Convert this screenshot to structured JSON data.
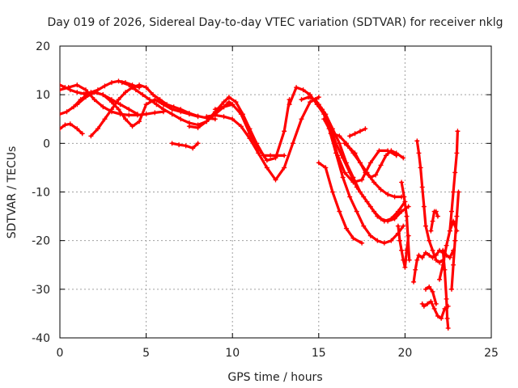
{
  "chart_data": {
    "type": "scatter",
    "title": "Day 019 of 2026, Sidereal Day-to-day VTEC variation (SDTVAR) for receiver nklg",
    "xlabel": "GPS time / hours",
    "ylabel": "SDTVAR / TECUs",
    "xlim": [
      0,
      25
    ],
    "ylim": [
      -40,
      20
    ],
    "x_ticks": [
      0,
      5,
      10,
      15,
      20,
      25
    ],
    "y_ticks": [
      20,
      10,
      0,
      -10,
      -20,
      -30,
      -40
    ],
    "grid": true,
    "legend": "none",
    "marker": "+",
    "color": "#ff0000",
    "series": [
      {
        "name": "trace-1",
        "x": [
          0,
          0.3,
          0.6,
          1.0,
          1.4,
          1.8,
          2.2,
          2.6,
          3.0,
          3.4,
          3.8,
          4.2,
          4.6
        ],
        "y": [
          12,
          11.5,
          11,
          10.5,
          10.2,
          10.5,
          11,
          11.8,
          12.5,
          12.8,
          12.5,
          12,
          11.5
        ]
      },
      {
        "name": "trace-2",
        "x": [
          0,
          0.4,
          0.8,
          1.2,
          1.6,
          2.0,
          2.5,
          3.0,
          3.5,
          4.0,
          4.5
        ],
        "y": [
          6,
          6.5,
          7.5,
          9,
          10,
          10.5,
          10,
          9,
          8,
          7,
          6
        ]
      },
      {
        "name": "trace-3",
        "x": [
          0,
          0.3,
          0.6,
          1.0,
          1.3
        ],
        "y": [
          3,
          3.8,
          4,
          3,
          2
        ]
      },
      {
        "name": "trace-4",
        "x": [
          0,
          0.5,
          1.0,
          1.5,
          2.0,
          2.5,
          3.0,
          3.5,
          4.0,
          4.5,
          5.0,
          5.5,
          6.0
        ],
        "y": [
          11,
          11.5,
          12,
          11,
          9,
          7.5,
          6.5,
          6,
          5.8,
          5.8,
          6,
          6.3,
          6.5
        ]
      },
      {
        "name": "trace-5",
        "x": [
          1.8,
          2.2,
          2.6,
          3.0,
          3.4,
          3.8,
          4.2,
          4.6,
          5.0,
          5.4,
          5.8,
          6.2,
          6.6,
          7.0,
          7.5,
          8.0,
          8.5,
          9.0
        ],
        "y": [
          1.5,
          3,
          5,
          7,
          9,
          10.5,
          11.5,
          12,
          11.5,
          10,
          9,
          8,
          7.5,
          7,
          6.2,
          5.6,
          5.2,
          5
        ]
      },
      {
        "name": "trace-6",
        "x": [
          1.0,
          1.5,
          2.0,
          2.5,
          3.0,
          3.4,
          3.8,
          4.2,
          4.6,
          5.0,
          5.5,
          6.0,
          6.5,
          7.0,
          7.5,
          8.0
        ],
        "y": [
          8,
          9.5,
          10.5,
          10,
          8.5,
          7,
          5,
          3.5,
          4.5,
          8,
          9,
          8,
          7,
          6.5,
          6,
          5.5
        ]
      },
      {
        "name": "trace-7",
        "x": [
          3.6,
          4.0,
          4.4,
          4.8,
          5.2,
          5.6,
          6.0,
          6.5,
          7.0,
          7.5,
          8.0,
          8.5,
          9.0,
          9.5,
          9.8,
          10.0
        ],
        "y": [
          12.5,
          12,
          11,
          10,
          9,
          8,
          7,
          6,
          5,
          4.2,
          3.8,
          4.5,
          6,
          7.5,
          8.5,
          8
        ]
      },
      {
        "name": "trace-8",
        "x": [
          6.5,
          6.9,
          7.3,
          7.7,
          8.0
        ],
        "y": [
          0,
          -0.3,
          -0.5,
          -1,
          0
        ]
      },
      {
        "name": "trace-9",
        "x": [
          7.5,
          8.0,
          8.5,
          9.0,
          9.5,
          9.8,
          10.2,
          10.6,
          11.0,
          11.4,
          11.8,
          12.2,
          12.6,
          13.0
        ],
        "y": [
          3.5,
          3.2,
          4.5,
          6.5,
          8.5,
          9.5,
          8.5,
          6,
          3,
          0,
          -2.5,
          -2.5,
          -2.5,
          -2.5
        ]
      },
      {
        "name": "trace-10",
        "x": [
          8.5,
          9.0,
          9.5,
          10.0,
          10.5,
          11.0,
          11.5,
          12.0,
          12.5,
          13.0,
          13.5,
          14.0,
          14.5,
          15.0
        ],
        "y": [
          5.5,
          5.8,
          5.5,
          5,
          3.5,
          1,
          -2,
          -5,
          -7.5,
          -5,
          0,
          5,
          8.5,
          9.5
        ]
      },
      {
        "name": "trace-11",
        "x": [
          9.0,
          9.5,
          10.0,
          10.5,
          11.0,
          11.5,
          12.0,
          12.5,
          13.0,
          13.3
        ],
        "y": [
          7,
          7.5,
          8,
          6,
          2,
          -1,
          -3.5,
          -3,
          2.5,
          9
        ]
      },
      {
        "name": "trace-12",
        "x": [
          13.3,
          13.7,
          14.1,
          14.5,
          14.9,
          15.3,
          15.7,
          16.1,
          16.5,
          17.0,
          17.5,
          18.0,
          18.5,
          19.0,
          19.5
        ],
        "y": [
          8,
          11.5,
          11,
          10,
          8,
          6,
          2,
          -2.5,
          -6,
          -8,
          -7.5,
          -4,
          -1.5,
          -1.5,
          -2.5
        ]
      },
      {
        "name": "trace-13",
        "x": [
          14.0,
          14.4,
          14.8,
          15.2,
          15.6,
          16.0,
          16.4,
          16.8,
          17.2,
          17.6,
          18.0,
          18.4,
          18.8,
          19.2,
          19.6,
          20.0
        ],
        "y": [
          9,
          9.5,
          9,
          7,
          4,
          0,
          -3,
          -6,
          -9,
          -11,
          -13,
          -15,
          -16,
          -15.5,
          -14,
          -12
        ]
      },
      {
        "name": "trace-14",
        "x": [
          15.0,
          15.4,
          15.8,
          16.2,
          16.6,
          17.0,
          17.5
        ],
        "y": [
          -4,
          -5,
          -10,
          -14,
          -17.5,
          -19.5,
          -20.5
        ]
      },
      {
        "name": "trace-15",
        "x": [
          15.0,
          15.4,
          15.8,
          16.2,
          16.6,
          17.0,
          17.4,
          17.8,
          18.2,
          18.6,
          19.0,
          19.4,
          19.8,
          20.2
        ],
        "y": [
          8,
          6,
          3,
          0,
          -4,
          -7,
          -10,
          -12,
          -14,
          -15.5,
          -16,
          -15.5,
          -14,
          -13
        ]
      },
      {
        "name": "trace-16",
        "x": [
          15.3,
          15.6,
          16.0,
          16.4,
          16.8,
          17.2,
          17.6,
          18.0,
          18.4,
          18.8,
          19.2,
          19.6,
          19.9
        ],
        "y": [
          5,
          3,
          -2,
          -7,
          -11,
          -14,
          -17,
          -19,
          -20,
          -20.5,
          -20,
          -18.5,
          -17
        ]
      },
      {
        "name": "trace-17",
        "x": [
          15.8,
          16.2,
          16.6,
          17.0,
          17.4,
          17.8,
          18.2,
          18.6,
          19.0,
          19.4,
          19.8
        ],
        "y": [
          2,
          1.5,
          0,
          -2,
          -4,
          -6,
          -8,
          -9.5,
          -10.5,
          -11,
          -11
        ]
      },
      {
        "name": "trace-18",
        "x": [
          16.5,
          16.8,
          17.1,
          17.4,
          17.7,
          18.0,
          18.3,
          18.6,
          18.9,
          19.2,
          19.5,
          19.9
        ],
        "y": [
          0,
          -1,
          -2,
          -4,
          -6,
          -7,
          -6.5,
          -4.5,
          -2.5,
          -1.5,
          -2,
          -3
        ]
      },
      {
        "name": "trace-19",
        "x": [
          16.8,
          17.1,
          17.4,
          17.7
        ],
        "y": [
          1.5,
          2,
          2.5,
          3
        ]
      },
      {
        "name": "trace-20",
        "x": [
          19.8,
          19.95,
          20.1,
          20.25
        ],
        "y": [
          -8,
          -11,
          -15,
          -24
        ]
      },
      {
        "name": "trace-21",
        "x": [
          19.6,
          19.7,
          19.8,
          19.9,
          20.0,
          20.1,
          20.2
        ],
        "y": [
          -17,
          -20,
          -22,
          -24,
          -25.5,
          -22,
          -19
        ]
      },
      {
        "name": "trace-22",
        "x": [
          20.7,
          20.8,
          20.9,
          21.0,
          21.1,
          21.2,
          21.4,
          21.6,
          21.8,
          22.0,
          22.2
        ],
        "y": [
          0.5,
          -2,
          -5,
          -9,
          -13,
          -17,
          -20,
          -22,
          -24,
          -24.5,
          -24
        ]
      },
      {
        "name": "trace-23",
        "x": [
          20.5,
          20.6,
          20.7,
          20.8,
          21.0,
          21.2,
          21.4,
          21.6,
          21.8,
          22.0,
          22.2,
          22.4,
          22.6,
          22.8
        ],
        "y": [
          -28.5,
          -26,
          -24,
          -23,
          -23.5,
          -22.5,
          -23,
          -23.5,
          -23,
          -22,
          -22.5,
          -23,
          -23.5,
          -22
        ]
      },
      {
        "name": "trace-24",
        "x": [
          21.2,
          21.4,
          21.6,
          21.8
        ],
        "y": [
          -30,
          -29.5,
          -30.5,
          -33
        ]
      },
      {
        "name": "trace-25",
        "x": [
          21.0,
          21.1,
          21.3,
          21.5,
          21.7,
          21.9,
          22.1,
          22.3,
          22.5
        ],
        "y": [
          -33,
          -33.5,
          -33,
          -32.5,
          -34,
          -35.5,
          -36,
          -34,
          -33.5
        ]
      },
      {
        "name": "trace-26",
        "x": [
          21.5,
          21.6,
          21.7,
          21.8,
          21.9
        ],
        "y": [
          -18,
          -16,
          -14,
          -14,
          -15
        ]
      },
      {
        "name": "trace-27",
        "x": [
          22.0,
          22.2,
          22.4,
          22.6,
          22.8,
          23.0
        ],
        "y": [
          -28,
          -25,
          -21,
          -18,
          -16,
          -18
        ]
      },
      {
        "name": "trace-28",
        "x": [
          22.2,
          22.3,
          22.4,
          22.45,
          22.5
        ],
        "y": [
          -22,
          -26,
          -32,
          -36,
          -38
        ]
      },
      {
        "name": "trace-29",
        "x": [
          22.6,
          22.7,
          22.8,
          22.9,
          23.0,
          23.05
        ],
        "y": [
          -18,
          -14,
          -10,
          -6,
          -2,
          2.5
        ]
      },
      {
        "name": "trace-30",
        "x": [
          22.7,
          22.8,
          22.9,
          23.0,
          23.1
        ],
        "y": [
          -30,
          -25,
          -20,
          -15,
          -10
        ]
      }
    ]
  }
}
